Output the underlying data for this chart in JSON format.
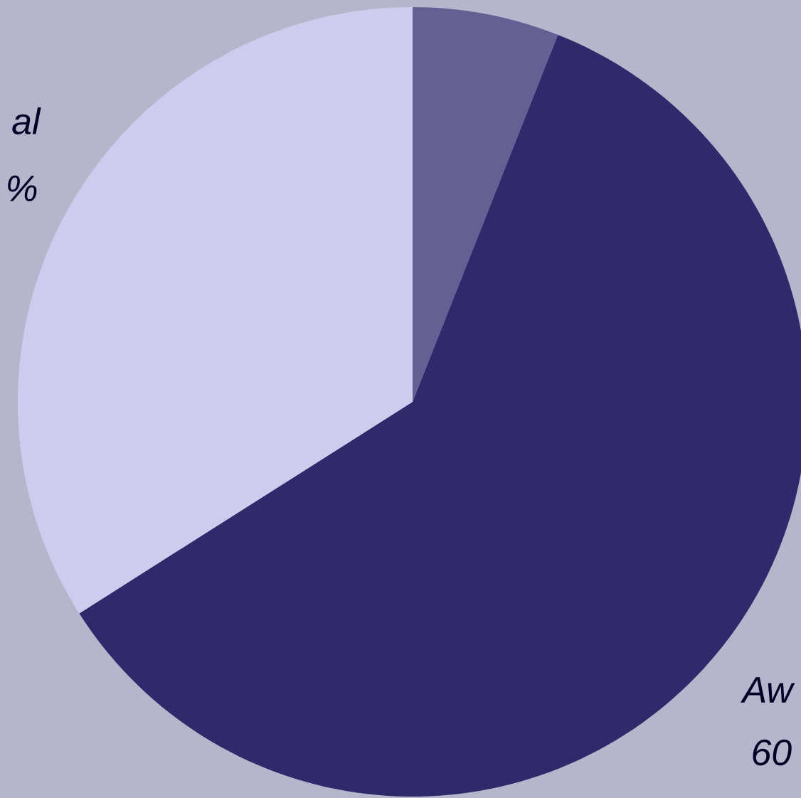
{
  "chart_data": {
    "type": "pie",
    "categories": [
      null,
      null,
      null
    ],
    "values": [
      6,
      60,
      34
    ],
    "colors": [
      "#655f94",
      "#31296b",
      "#cfcbee"
    ],
    "annotations": [
      "al",
      "%",
      "Aw",
      "60"
    ]
  }
}
